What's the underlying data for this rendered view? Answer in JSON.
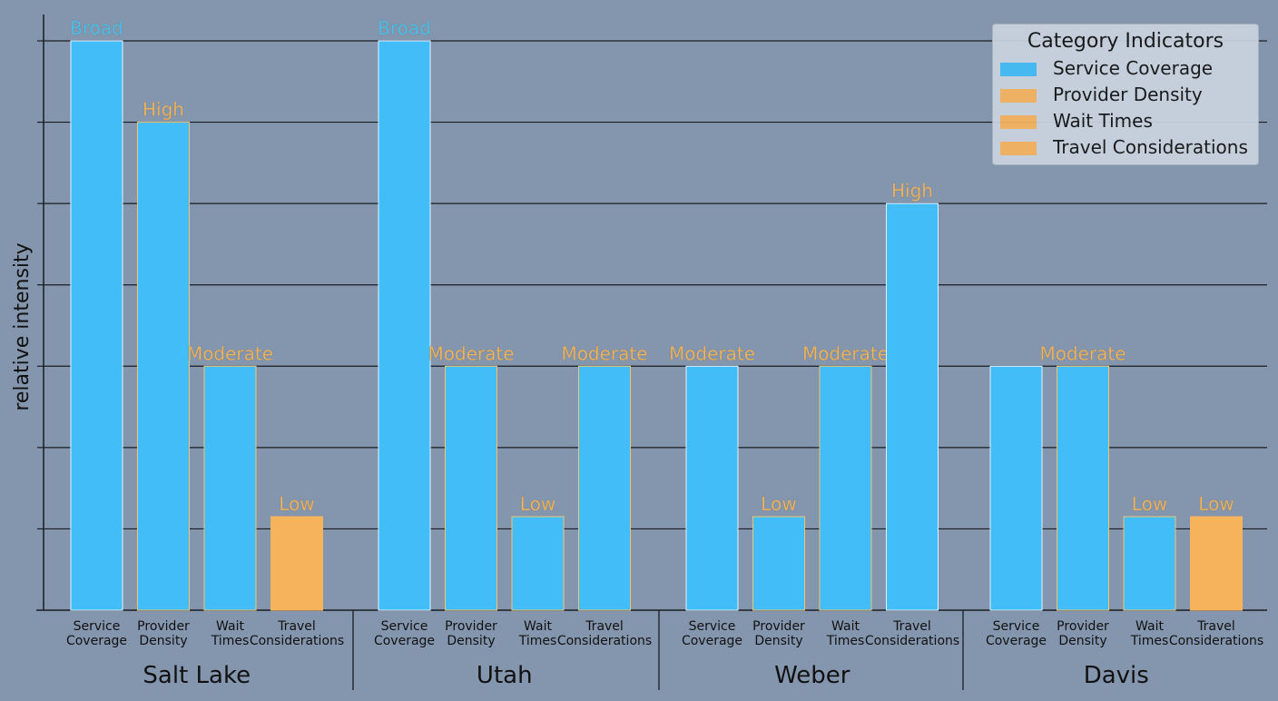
{
  "chart_data": {
    "type": "bar",
    "ylabel": "relative intensity",
    "ylim": [
      0,
      7
    ],
    "yticks": [
      0,
      1,
      2,
      3,
      4,
      5,
      6,
      7
    ],
    "grid": true,
    "legend_position": "top-right",
    "categories": [
      "Service\nCoverage",
      "Provider\nDensity",
      "Wait\nTimes",
      "Travel\nConsiderations"
    ],
    "groups": [
      {
        "name": "Salt Lake",
        "bars": [
          {
            "category": "Service\nCoverage",
            "value": 7,
            "label": "Broad",
            "color": "#42bdf7",
            "edge": "#dff3ff",
            "label_color": "#4cc3f2"
          },
          {
            "category": "Provider\nDensity",
            "value": 6,
            "label": "High",
            "color": "#42bdf7",
            "edge": "#f2c46e",
            "label_color": "#f3b660"
          },
          {
            "category": "Wait\nTimes",
            "value": 3,
            "label": "Moderate",
            "color": "#42bdf7",
            "edge": "#f2c46e",
            "label_color": "#f3b660"
          },
          {
            "category": "Travel\nConsiderations",
            "value": 1.15,
            "label": "Low",
            "color": "#f7b35c",
            "edge": "#f7b35c",
            "label_color": "#f3b660"
          }
        ]
      },
      {
        "name": "Utah",
        "bars": [
          {
            "category": "Service\nCoverage",
            "value": 7,
            "label": "Broad",
            "color": "#42bdf7",
            "edge": "#dff3ff",
            "label_color": "#4cc3f2"
          },
          {
            "category": "Provider\nDensity",
            "value": 3,
            "label": "Moderate",
            "color": "#42bdf7",
            "edge": "#f2c46e",
            "label_color": "#f3b660"
          },
          {
            "category": "Wait\nTimes",
            "value": 1.15,
            "label": "Low",
            "color": "#42bdf7",
            "edge": "#f2c46e",
            "label_color": "#f3b660"
          },
          {
            "category": "Travel\nConsiderations",
            "value": 3,
            "label": "Moderate",
            "color": "#42bdf7",
            "edge": "#f2c46e",
            "label_color": "#f3b660"
          }
        ]
      },
      {
        "name": "Weber",
        "bars": [
          {
            "category": "Service\nCoverage",
            "value": 3,
            "label": "Moderate",
            "color": "#42bdf7",
            "edge": "#dff3ff",
            "label_color": "#f3b660"
          },
          {
            "category": "Provider\nDensity",
            "value": 1.15,
            "label": "Low",
            "color": "#42bdf7",
            "edge": "#f2c46e",
            "label_color": "#f3b660"
          },
          {
            "category": "Wait\nTimes",
            "value": 3,
            "label": "Moderate",
            "color": "#42bdf7",
            "edge": "#f2c46e",
            "label_color": "#f3b660"
          },
          {
            "category": "Travel\nConsiderations",
            "value": 5,
            "label": "High",
            "color": "#42bdf7",
            "edge": "#dff3ff",
            "label_color": "#f3b660"
          }
        ]
      },
      {
        "name": "Davis",
        "bars": [
          {
            "category": "Service\nCoverage",
            "value": 3,
            "label": "",
            "color": "#42bdf7",
            "edge": "#dff3ff",
            "label_color": "#f3b660"
          },
          {
            "category": "Provider\nDensity",
            "value": 3,
            "label": "Moderate",
            "color": "#42bdf7",
            "edge": "#f2c46e",
            "label_color": "#f3b660"
          },
          {
            "category": "Wait\nTimes",
            "value": 1.15,
            "label": "Low",
            "color": "#42bdf7",
            "edge": "#f2c46e",
            "label_color": "#f3b660"
          },
          {
            "category": "Travel\nConsiderations",
            "value": 1.15,
            "label": "Low",
            "color": "#f7b35c",
            "edge": "#f7b35c",
            "label_color": "#f3b660"
          }
        ]
      }
    ],
    "legend": {
      "title": "Category Indicators",
      "items": [
        {
          "label": "Service Coverage",
          "color": "#42bdf7"
        },
        {
          "label": "Provider Density",
          "color": "#f7b35c"
        },
        {
          "label": "Wait Times",
          "color": "#f7b35c"
        },
        {
          "label": "Travel Considerations",
          "color": "#f7b35c"
        }
      ]
    }
  }
}
